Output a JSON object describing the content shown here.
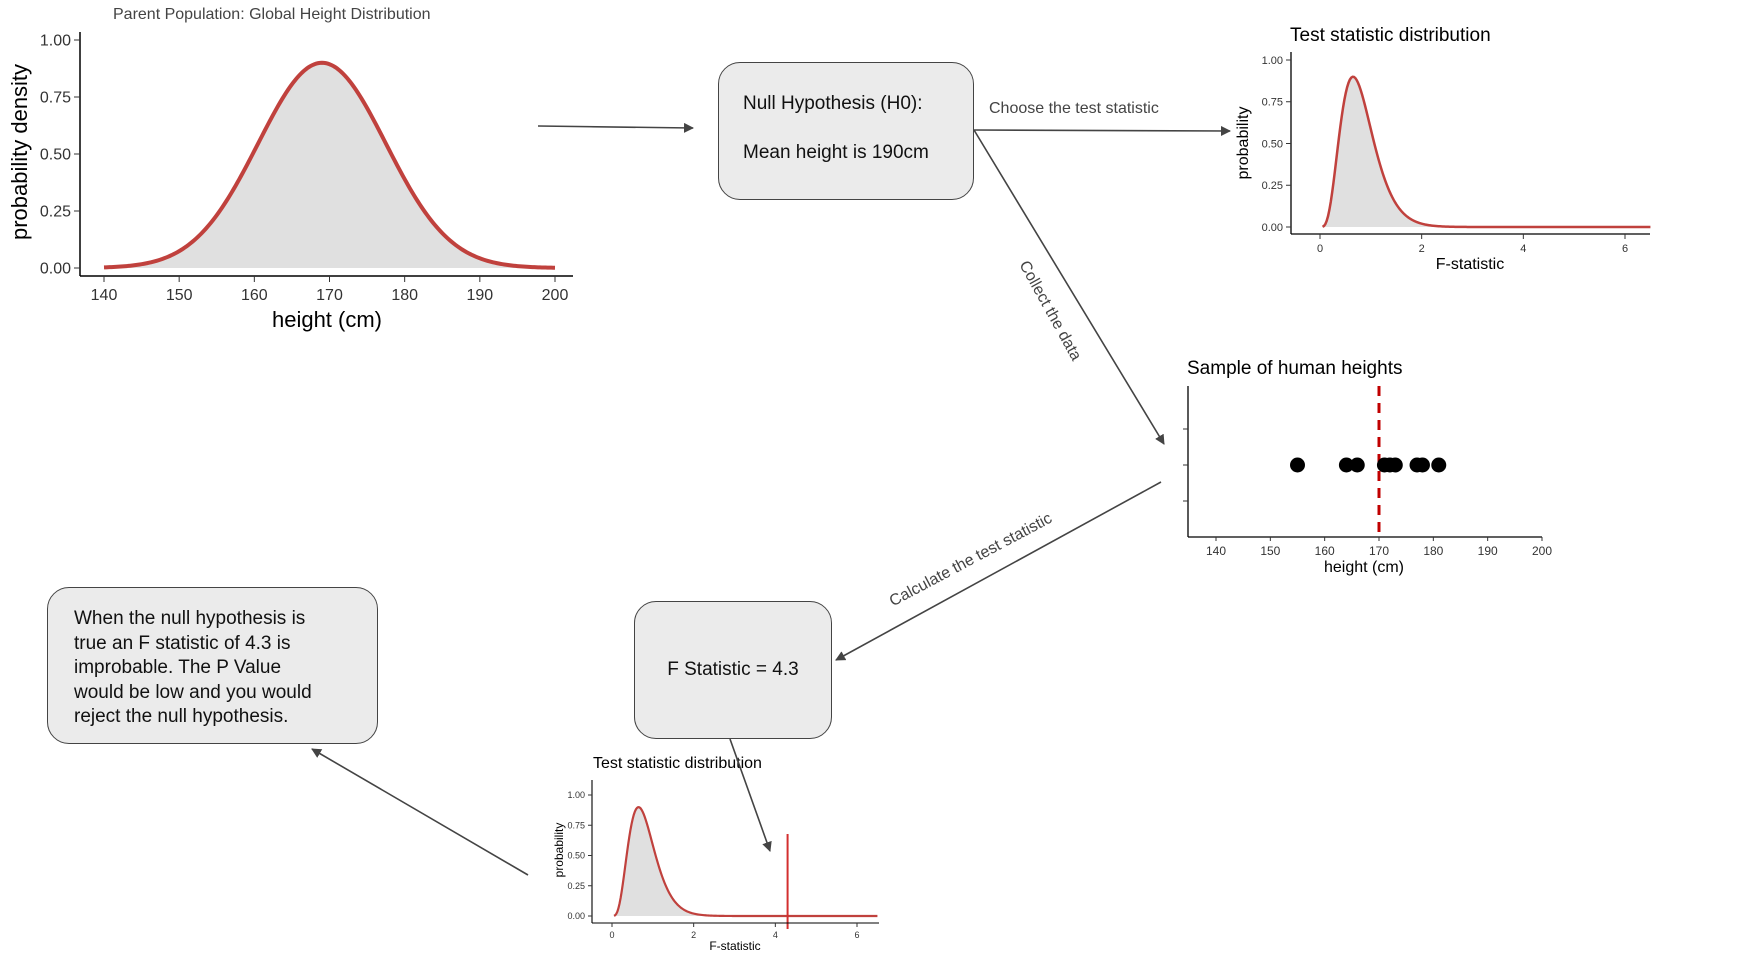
{
  "parent_plot": {
    "title": "Parent Population: Global Height Distribution",
    "xlabel": "height (cm)",
    "ylabel": "probability density",
    "xticks": [
      "140",
      "150",
      "160",
      "170",
      "180",
      "190",
      "200"
    ],
    "yticks": [
      "0.00",
      "0.25",
      "0.50",
      "0.75",
      "1.00"
    ]
  },
  "steps": {
    "null_hypothesis_title": "Null Hypothesis (H0):",
    "null_hypothesis_text": "Mean height is 190cm",
    "choose_stat_label": "Choose the test statistic",
    "collect_data_label": "Collect the data",
    "calculate_stat_label": "Calculate the test statistic",
    "f_statistic_text": "F Statistic = 4.3",
    "conclusion_lines": [
      "When the null hypothesis is",
      "true an F statistic of 4.3 is",
      "improbable. The P Value",
      "would be low and you would",
      "reject the null hypothesis."
    ]
  },
  "test_stat_plot": {
    "title": "Test statistic distribution",
    "xlabel": "F-statistic",
    "ylabel": "probability",
    "xticks": [
      "0",
      "2",
      "4",
      "6"
    ],
    "yticks": [
      "0.00",
      "0.25",
      "0.50",
      "0.75",
      "1.00"
    ]
  },
  "sample_plot": {
    "title": "Sample of human heights",
    "xlabel": "height (cm)",
    "xticks": [
      "140",
      "150",
      "160",
      "170",
      "180",
      "190",
      "200"
    ]
  },
  "small_test_stat_plot": {
    "title": "Test statistic distribution",
    "xlabel": "F-statistic",
    "ylabel": "probability",
    "xticks": [
      "0",
      "2",
      "4",
      "6"
    ],
    "yticks": [
      "0.00",
      "0.25",
      "0.50",
      "0.75",
      "1.00"
    ]
  },
  "colors": {
    "curve": "#c0413d",
    "fill": "#e0e0e0",
    "box_fill": "#ebebeb",
    "arrow": "#444444",
    "mean_line": "#c00000",
    "points": "#000000"
  },
  "chart_data": [
    {
      "type": "area",
      "title": "Parent Population: Global Height Distribution",
      "xlabel": "height (cm)",
      "ylabel": "probability density",
      "xlim": [
        140,
        200
      ],
      "ylim": [
        0,
        1
      ],
      "distribution": "normal",
      "peak_x": 169,
      "peak_y": 0.9,
      "sd": 8.5
    },
    {
      "type": "area",
      "title": "Test statistic distribution",
      "xlabel": "F-statistic",
      "ylabel": "probability",
      "xlim": [
        0,
        6.5
      ],
      "ylim": [
        0,
        1
      ],
      "distribution": "F",
      "peak_x": 0.65,
      "peak_y": 0.9
    },
    {
      "type": "scatter",
      "title": "Sample of human heights",
      "xlabel": "height (cm)",
      "xlim": [
        140,
        200
      ],
      "x": [
        155,
        164,
        166,
        171,
        172,
        173,
        177,
        178,
        181
      ],
      "mean_line_x": 170
    },
    {
      "type": "area",
      "title": "Test statistic distribution",
      "xlabel": "F-statistic",
      "ylabel": "probability",
      "xlim": [
        0,
        6.5
      ],
      "ylim": [
        0,
        1
      ],
      "distribution": "F",
      "peak_x": 0.65,
      "peak_y": 0.9,
      "observed_f": 4.3
    }
  ]
}
